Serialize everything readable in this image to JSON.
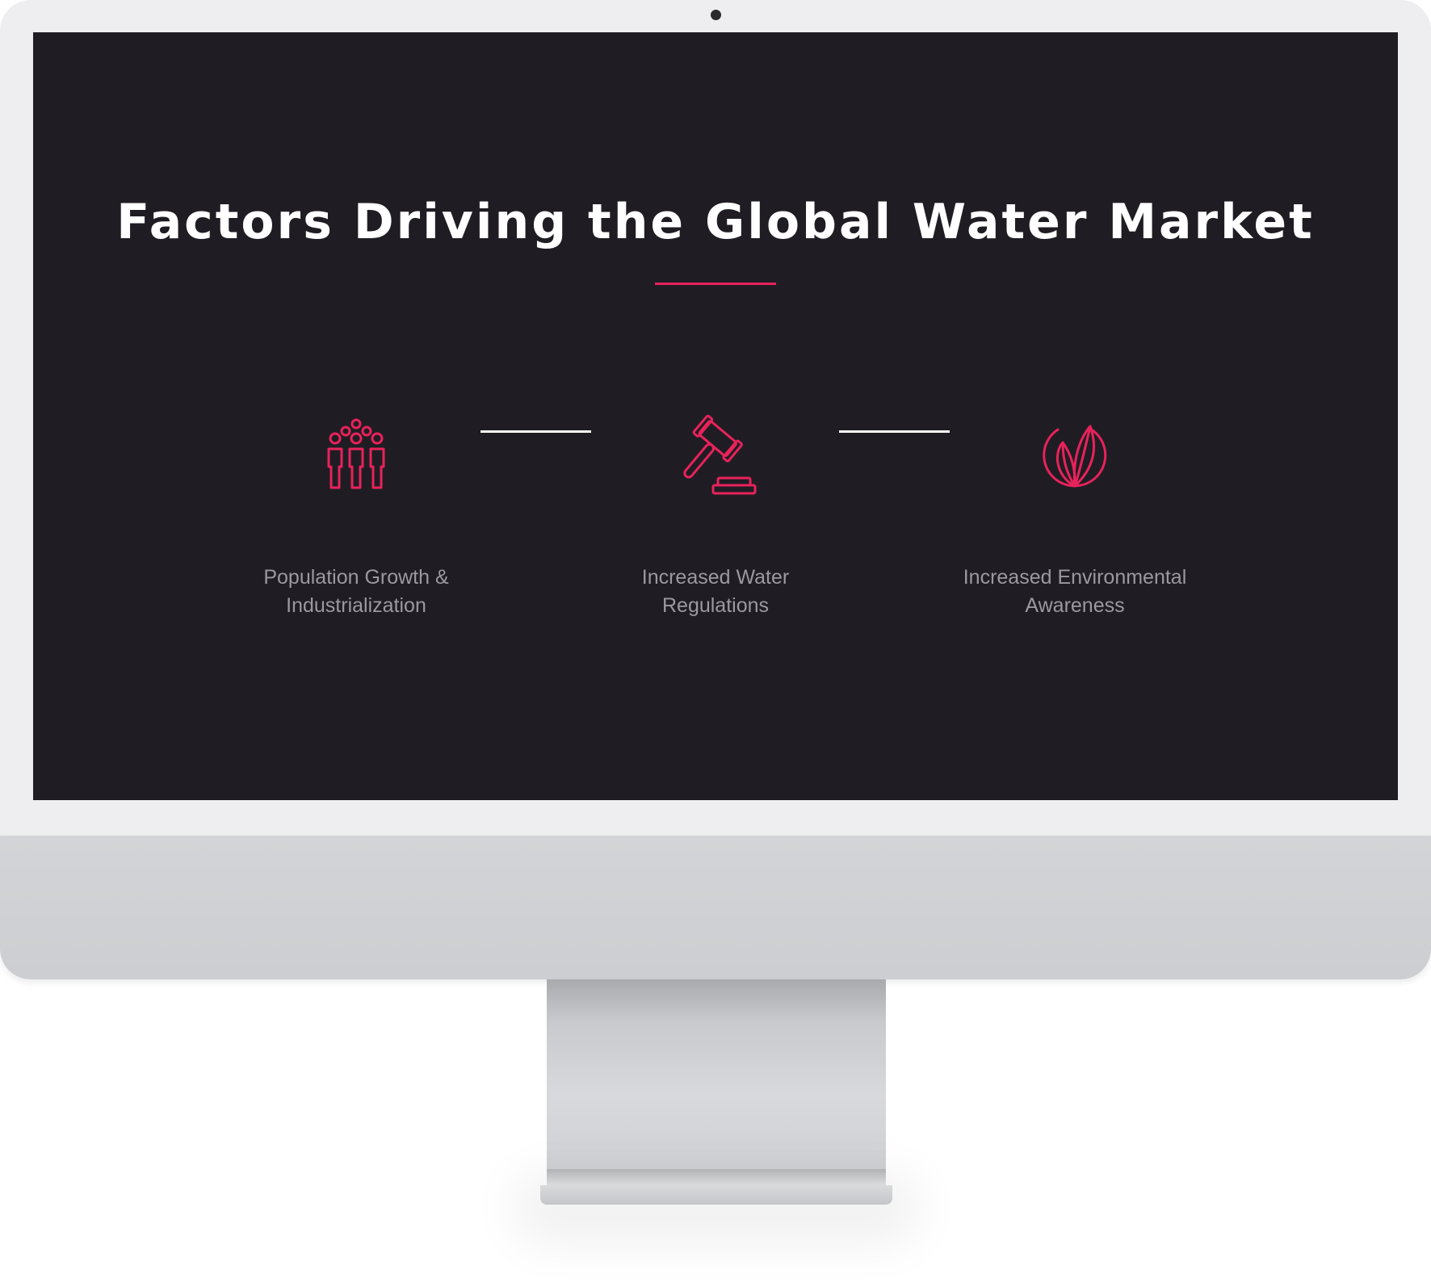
{
  "slide": {
    "title": "Factors Driving the Global Water Market",
    "accent_color": "#e8225b",
    "background_color": "#1f1d23"
  },
  "factors": [
    {
      "icon": "people-group-icon",
      "label": "Population Growth &\nIndustrialization"
    },
    {
      "icon": "gavel-icon",
      "label": "Increased Water\nRegulations"
    },
    {
      "icon": "leaf-circle-icon",
      "label": "Increased Environmental\nAwareness"
    }
  ]
}
